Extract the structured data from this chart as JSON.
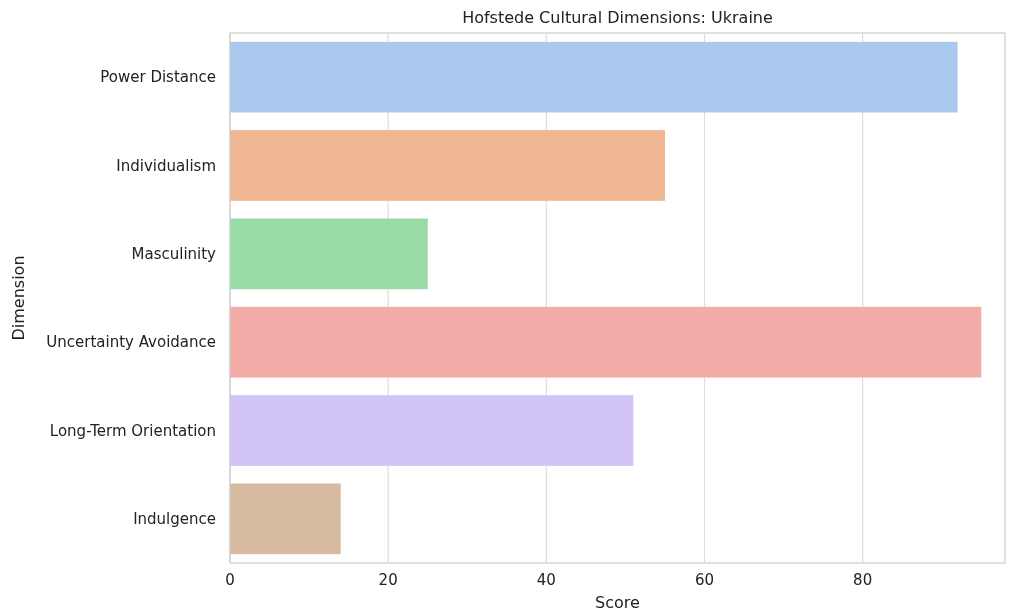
{
  "chart_data": {
    "type": "bar",
    "orientation": "horizontal",
    "title": "Hofstede Cultural Dimensions: Ukraine",
    "xlabel": "Score",
    "ylabel": "Dimension",
    "categories": [
      "Power Distance",
      "Individualism",
      "Masculinity",
      "Uncertainty Avoidance",
      "Long-Term Orientation",
      "Indulgence"
    ],
    "values": [
      92,
      55,
      25,
      95,
      51,
      14
    ],
    "colors": [
      "#abc9ee",
      "#f0b591",
      "#98dba6",
      "#f2aba6",
      "#d2c3f7",
      "#d6bba1"
    ],
    "xlim": [
      0,
      98
    ],
    "xticks": [
      0,
      20,
      40,
      60,
      80
    ],
    "grid": "x"
  }
}
